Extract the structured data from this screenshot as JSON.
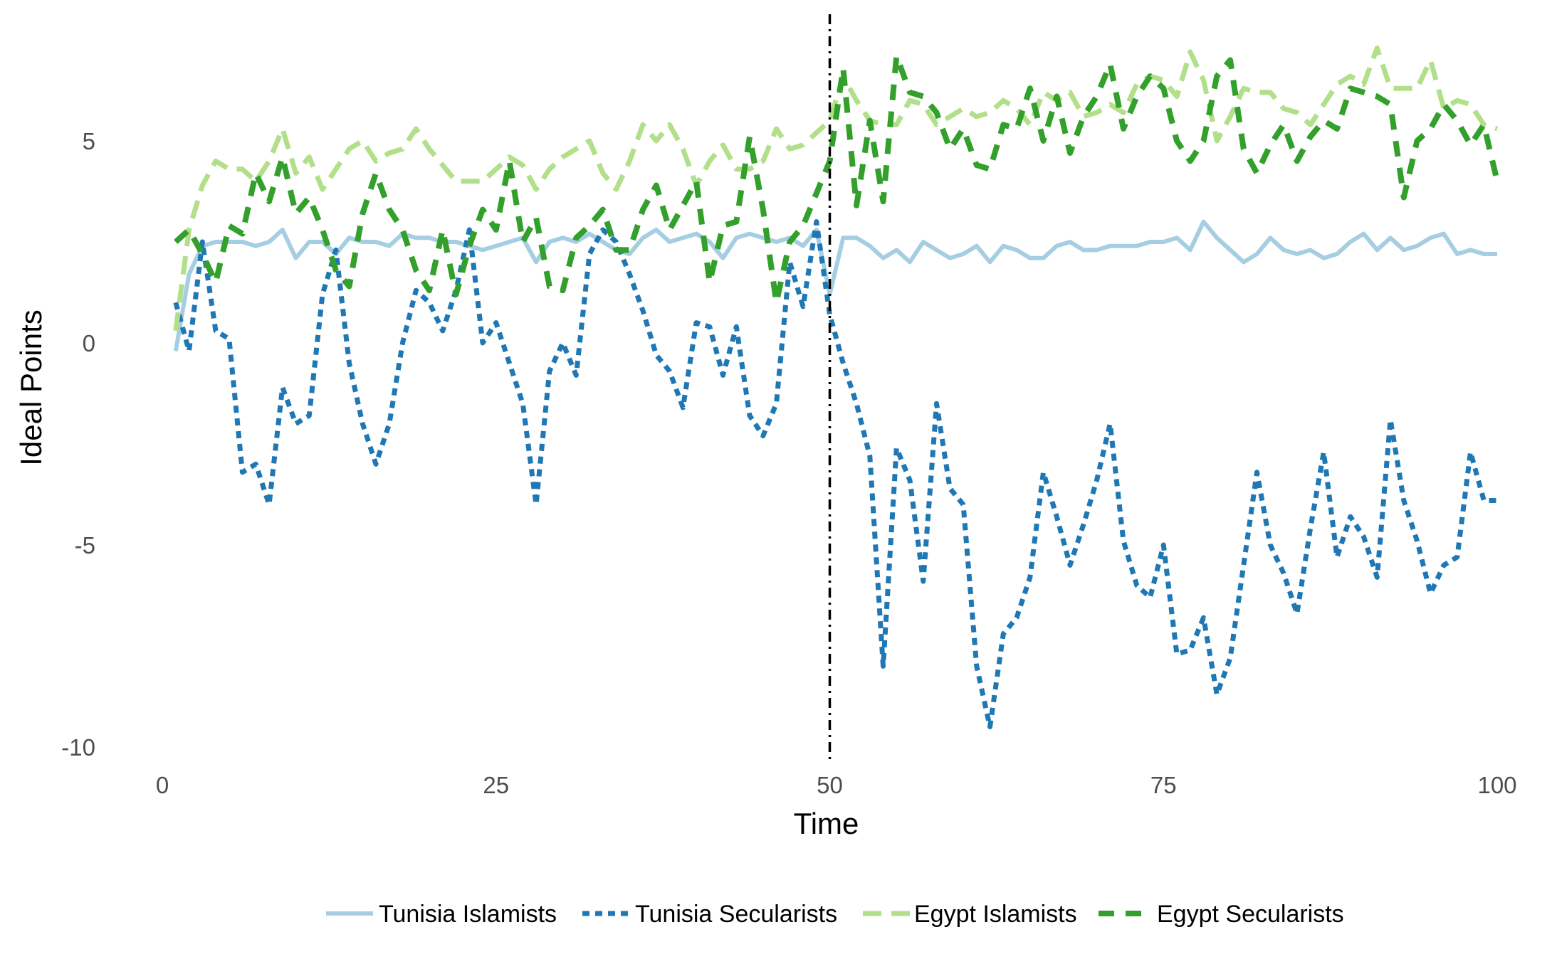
{
  "chart_data": {
    "type": "line",
    "xlabel": "Time",
    "ylabel": "Ideal Points",
    "xlim": [
      0,
      100
    ],
    "ylim": [
      -10,
      7.3
    ],
    "xticks": [
      0,
      25,
      50,
      75,
      100
    ],
    "xtick_labels": [
      "0",
      "25",
      "50",
      "75",
      "100"
    ],
    "yticks": [
      -10,
      -5,
      0,
      5
    ],
    "ytick_labels": [
      "-10",
      "-5",
      "0",
      "5"
    ],
    "grid": false,
    "legend_position": "bottom",
    "vline": {
      "x": 50,
      "style": "dotdash",
      "color": "#000000"
    },
    "series": [
      {
        "name": "Tunisia Islamists",
        "color": "#a6cee3",
        "dash": "solid",
        "x": [
          1,
          2,
          3,
          4,
          5,
          6,
          7,
          8,
          9,
          10,
          11,
          12,
          13,
          14,
          15,
          16,
          17,
          18,
          19,
          20,
          21,
          22,
          23,
          24,
          25,
          26,
          27,
          28,
          29,
          30,
          31,
          32,
          33,
          34,
          35,
          36,
          37,
          38,
          39,
          40,
          41,
          42,
          43,
          44,
          45,
          46,
          47,
          48,
          49,
          50,
          51,
          52,
          53,
          54,
          55,
          56,
          57,
          58,
          59,
          60,
          61,
          62,
          63,
          64,
          65,
          66,
          67,
          68,
          69,
          70,
          71,
          72,
          73,
          74,
          75,
          76,
          77,
          78,
          79,
          80,
          81,
          82,
          83,
          84,
          85,
          86,
          87,
          88,
          89,
          90,
          91,
          92,
          93,
          94,
          95,
          96,
          97,
          98,
          99,
          100
        ],
        "values": [
          -0.2,
          1.7,
          2.4,
          2.5,
          2.5,
          2.5,
          2.4,
          2.5,
          2.8,
          2.1,
          2.5,
          2.5,
          2.2,
          2.6,
          2.5,
          2.5,
          2.4,
          2.7,
          2.6,
          2.6,
          2.5,
          2.5,
          2.4,
          2.3,
          2.4,
          2.5,
          2.6,
          2.0,
          2.5,
          2.6,
          2.5,
          2.7,
          2.5,
          2.3,
          2.2,
          2.6,
          2.8,
          2.5,
          2.6,
          2.7,
          2.5,
          2.1,
          2.6,
          2.7,
          2.6,
          2.5,
          2.6,
          2.4,
          2.8,
          1.2,
          2.6,
          2.6,
          2.4,
          2.1,
          2.3,
          2.0,
          2.5,
          2.3,
          2.1,
          2.2,
          2.4,
          2.0,
          2.4,
          2.3,
          2.1,
          2.1,
          2.4,
          2.5,
          2.3,
          2.3,
          2.4,
          2.4,
          2.4,
          2.5,
          2.5,
          2.6,
          2.3,
          3.0,
          2.6,
          2.3,
          2.0,
          2.2,
          2.6,
          2.3,
          2.2,
          2.3,
          2.1,
          2.2,
          2.5,
          2.7,
          2.3,
          2.6,
          2.3,
          2.4,
          2.6,
          2.7,
          2.2,
          2.3,
          2.2,
          2.2
        ]
      },
      {
        "name": "Tunisia Secularists",
        "color": "#1f78b4",
        "dash": "dotted",
        "x": [
          1,
          2,
          3,
          4,
          5,
          6,
          7,
          8,
          9,
          10,
          11,
          12,
          13,
          14,
          15,
          16,
          17,
          18,
          19,
          20,
          21,
          22,
          23,
          24,
          25,
          26,
          27,
          28,
          29,
          30,
          31,
          32,
          33,
          34,
          35,
          36,
          37,
          38,
          39,
          40,
          41,
          42,
          43,
          44,
          45,
          46,
          47,
          48,
          49,
          50,
          51,
          52,
          53,
          54,
          55,
          56,
          57,
          58,
          59,
          60,
          61,
          62,
          63,
          64,
          65,
          66,
          67,
          68,
          69,
          70,
          71,
          72,
          73,
          74,
          75,
          76,
          77,
          78,
          79,
          80,
          81,
          82,
          83,
          84,
          85,
          86,
          87,
          88,
          89,
          90,
          91,
          92,
          93,
          94,
          95,
          96,
          97,
          98,
          99,
          100
        ],
        "values": [
          1.0,
          -0.2,
          2.5,
          0.3,
          0.1,
          -3.2,
          -3.0,
          -4.0,
          -1.1,
          -2.0,
          -1.8,
          1.2,
          2.3,
          -0.5,
          -2.0,
          -3.0,
          -2.0,
          0.0,
          1.3,
          1.0,
          0.3,
          1.3,
          2.8,
          0.0,
          0.5,
          -0.5,
          -1.5,
          -4.0,
          -0.7,
          0.0,
          -0.8,
          2.2,
          2.8,
          2.5,
          1.7,
          0.8,
          -0.3,
          -0.7,
          -1.6,
          0.5,
          0.4,
          -0.8,
          0.4,
          -1.8,
          -2.3,
          -1.5,
          2.0,
          0.9,
          3.0,
          0.7,
          -0.5,
          -1.5,
          -2.8,
          -8.0,
          -2.6,
          -3.4,
          -5.9,
          -1.5,
          -3.6,
          -4.0,
          -8.0,
          -9.5,
          -7.2,
          -6.8,
          -5.8,
          -3.2,
          -4.3,
          -5.5,
          -4.5,
          -3.4,
          -2.0,
          -4.9,
          -6.0,
          -6.3,
          -5.0,
          -7.7,
          -7.6,
          -6.8,
          -8.7,
          -7.8,
          -5.5,
          -3.2,
          -5.0,
          -5.7,
          -6.7,
          -4.6,
          -2.7,
          -5.3,
          -4.3,
          -4.8,
          -5.8,
          -1.9,
          -3.9,
          -4.9,
          -6.2,
          -5.5,
          -5.3,
          -2.7,
          -3.9,
          -3.9
        ]
      },
      {
        "name": "Egypt Islamists",
        "color": "#b2df8a",
        "dash": "longdash",
        "x": [
          1,
          2,
          3,
          4,
          5,
          6,
          7,
          8,
          9,
          10,
          11,
          12,
          13,
          14,
          15,
          16,
          17,
          18,
          19,
          20,
          21,
          22,
          23,
          24,
          25,
          26,
          27,
          28,
          29,
          30,
          31,
          32,
          33,
          34,
          35,
          36,
          37,
          38,
          39,
          40,
          41,
          42,
          43,
          44,
          45,
          46,
          47,
          48,
          49,
          50,
          51,
          52,
          53,
          54,
          55,
          56,
          57,
          58,
          59,
          60,
          61,
          62,
          63,
          64,
          65,
          66,
          67,
          68,
          69,
          70,
          71,
          72,
          73,
          74,
          75,
          76,
          77,
          78,
          79,
          80,
          81,
          82,
          83,
          84,
          85,
          86,
          87,
          88,
          89,
          90,
          91,
          92,
          93,
          94,
          95,
          96,
          97,
          98,
          99,
          100
        ],
        "values": [
          0.3,
          2.8,
          3.9,
          4.5,
          4.3,
          4.3,
          4.0,
          4.5,
          5.3,
          4.2,
          4.6,
          3.8,
          4.3,
          4.8,
          5.0,
          4.5,
          4.7,
          4.8,
          5.3,
          4.8,
          4.4,
          4.0,
          4.0,
          4.0,
          4.3,
          4.6,
          4.4,
          3.8,
          4.3,
          4.6,
          4.8,
          5.0,
          4.2,
          3.8,
          4.5,
          5.4,
          5.0,
          5.4,
          4.8,
          3.9,
          4.5,
          4.9,
          4.3,
          4.3,
          4.5,
          5.3,
          4.8,
          4.9,
          5.2,
          5.5,
          6.6,
          6.0,
          5.5,
          5.4,
          5.4,
          6.0,
          5.9,
          5.4,
          5.6,
          5.8,
          5.6,
          5.7,
          6.0,
          5.8,
          5.4,
          6.2,
          6.0,
          6.2,
          5.6,
          5.7,
          5.9,
          5.7,
          6.4,
          6.6,
          6.5,
          6.1,
          7.2,
          6.5,
          5.0,
          5.6,
          6.3,
          6.2,
          6.2,
          5.8,
          5.7,
          5.4,
          5.9,
          6.4,
          6.6,
          6.4,
          7.3,
          6.3,
          6.3,
          6.3,
          7.0,
          5.8,
          6.0,
          5.9,
          5.4,
          5.3
        ]
      },
      {
        "name": "Egypt Secularists",
        "color": "#33a02c",
        "dash": "dashed",
        "x": [
          1,
          2,
          3,
          4,
          5,
          6,
          7,
          8,
          9,
          10,
          11,
          12,
          13,
          14,
          15,
          16,
          17,
          18,
          19,
          20,
          21,
          22,
          23,
          24,
          25,
          26,
          27,
          28,
          29,
          30,
          31,
          32,
          33,
          34,
          35,
          36,
          37,
          38,
          39,
          40,
          41,
          42,
          43,
          44,
          45,
          46,
          47,
          48,
          49,
          50,
          51,
          52,
          53,
          54,
          55,
          56,
          57,
          58,
          59,
          60,
          61,
          62,
          63,
          64,
          65,
          66,
          67,
          68,
          69,
          70,
          71,
          72,
          73,
          74,
          75,
          76,
          77,
          78,
          79,
          80,
          81,
          82,
          83,
          84,
          85,
          86,
          87,
          88,
          89,
          90,
          91,
          92,
          93,
          94,
          95,
          96,
          97,
          98,
          99,
          100
        ],
        "values": [
          2.5,
          2.8,
          2.2,
          1.5,
          2.9,
          2.7,
          4.2,
          3.5,
          4.6,
          3.2,
          3.6,
          2.8,
          1.8,
          1.4,
          3.2,
          4.2,
          3.3,
          2.8,
          1.8,
          1.3,
          2.8,
          1.2,
          2.4,
          3.3,
          2.8,
          4.5,
          2.5,
          3.1,
          1.4,
          1.3,
          2.6,
          2.9,
          3.3,
          2.3,
          2.3,
          3.3,
          3.9,
          2.8,
          3.4,
          4.0,
          1.5,
          2.9,
          3.0,
          5.1,
          3.3,
          1.0,
          2.5,
          2.9,
          3.7,
          4.5,
          6.8,
          3.4,
          5.5,
          3.5,
          7.1,
          6.2,
          6.1,
          5.7,
          4.8,
          5.3,
          4.4,
          4.3,
          5.4,
          5.3,
          6.3,
          5.0,
          6.1,
          4.7,
          5.6,
          6.1,
          6.9,
          5.3,
          6.1,
          6.6,
          6.3,
          5.0,
          4.5,
          5.0,
          6.6,
          7.0,
          4.8,
          4.2,
          4.9,
          5.4,
          4.5,
          5.1,
          5.5,
          5.3,
          6.3,
          6.2,
          6.1,
          5.9,
          3.6,
          5.0,
          5.3,
          5.9,
          5.5,
          4.9,
          5.4,
          4.0
        ]
      }
    ]
  }
}
